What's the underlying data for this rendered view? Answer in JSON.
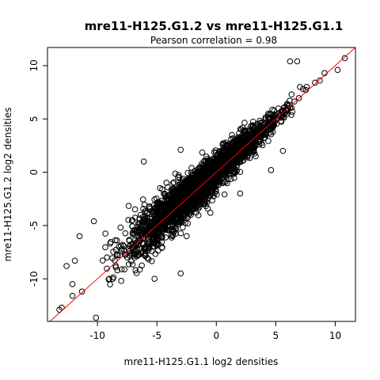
{
  "chart_data": {
    "type": "scatter",
    "title": "mre11-H125.G1.2 vs mre11-H125.G1.1",
    "subtitle": "Pearson correlation =  0.98",
    "xlabel": "mre11-H125.G1.1 log2 densities",
    "ylabel": "mre11-H125.G1.2 log2 densities",
    "xlim": [
      -14.2,
      11.7
    ],
    "ylim": [
      -14.0,
      11.7
    ],
    "xticks": [
      -10,
      -5,
      0,
      5,
      10
    ],
    "yticks": [
      -10,
      -5,
      0,
      5,
      10
    ],
    "grid": false,
    "legend": "none",
    "marker": "open-circle",
    "reference_line": {
      "type": "identity",
      "slope": 1,
      "intercept": 0,
      "color": "#ff0000"
    },
    "point_color": "#000000",
    "outliers": [
      {
        "x": -13.2,
        "y": -12.9
      },
      {
        "x": -13.0,
        "y": -12.7
      },
      {
        "x": -12.1,
        "y": -11.6
      },
      {
        "x": -11.3,
        "y": -11.2
      },
      {
        "x": -12.1,
        "y": -10.5
      },
      {
        "x": -12.6,
        "y": -8.8
      },
      {
        "x": -11.9,
        "y": -8.3
      },
      {
        "x": -11.5,
        "y": -6.0
      },
      {
        "x": -10.3,
        "y": -4.6
      },
      {
        "x": -6.1,
        "y": 1.0
      },
      {
        "x": -3.0,
        "y": 2.1
      },
      {
        "x": 6.2,
        "y": 10.4
      },
      {
        "x": 6.8,
        "y": 10.4
      },
      {
        "x": 10.8,
        "y": 10.7
      },
      {
        "x": 10.2,
        "y": 9.6
      },
      {
        "x": 9.1,
        "y": 9.3
      },
      {
        "x": 8.3,
        "y": 8.4
      },
      {
        "x": 7.6,
        "y": 8.0
      },
      {
        "x": 8.7,
        "y": 8.6
      },
      {
        "x": -5.2,
        "y": -10.0
      },
      {
        "x": -8.0,
        "y": -10.2
      },
      {
        "x": -9.0,
        "y": -10.0
      },
      {
        "x": -3.0,
        "y": -9.5
      },
      {
        "x": -2.5,
        "y": -6.0
      },
      {
        "x": 2.0,
        "y": -2.0
      },
      {
        "x": 4.6,
        "y": 0.2
      },
      {
        "x": 5.6,
        "y": 2.0
      }
    ],
    "dense_band": {
      "n_points": 2600,
      "x_range": [
        -10.5,
        8.0
      ],
      "noise_sd_low": 1.5,
      "noise_sd_high": 0.35,
      "upward_bias": 0.3
    }
  }
}
